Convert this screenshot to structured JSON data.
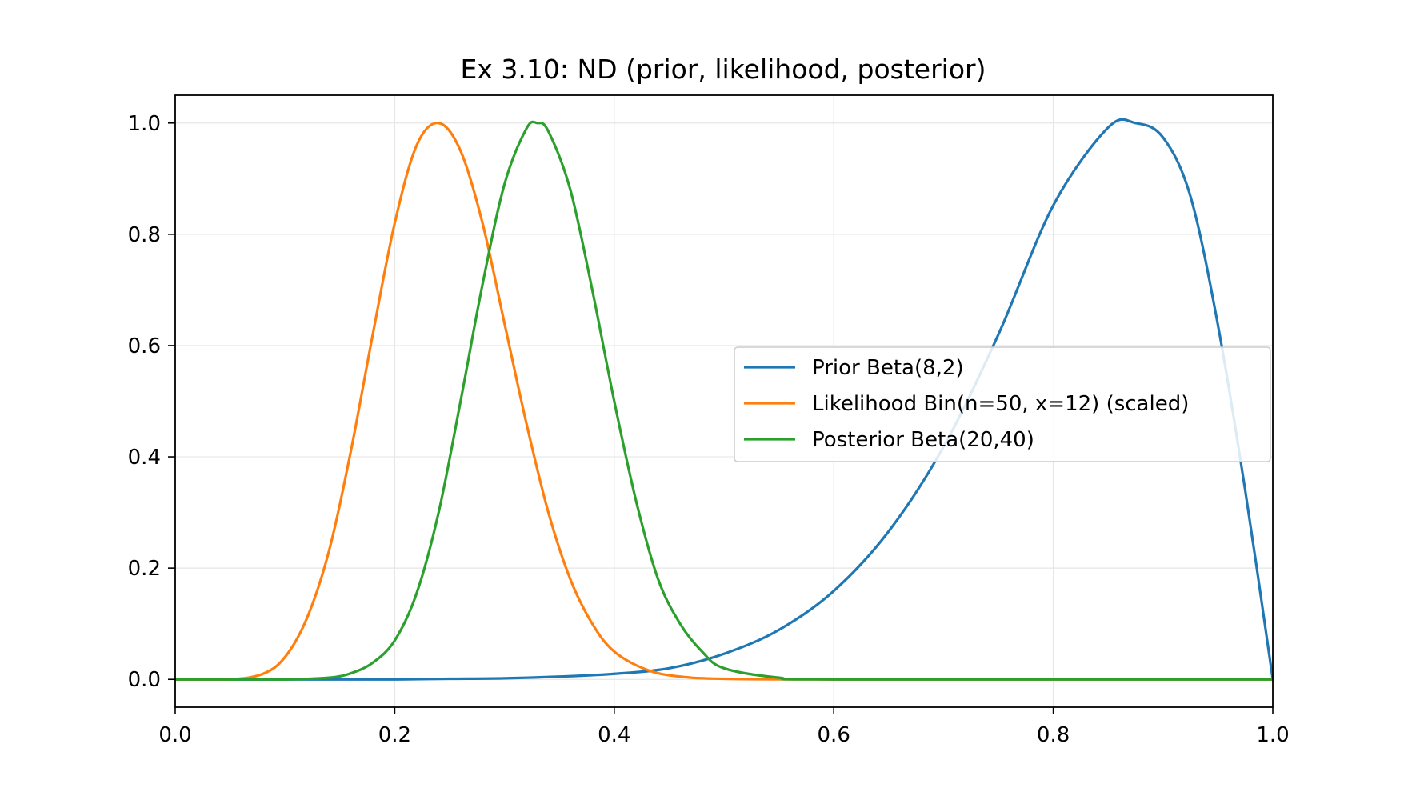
{
  "chart_data": {
    "type": "line",
    "title": "Ex 3.10: ND (prior, likelihood, posterior)",
    "xlabel": "",
    "ylabel": "",
    "xlim": [
      0.0,
      1.0
    ],
    "ylim": [
      -0.05,
      1.05
    ],
    "xticks": [
      "0.0",
      "0.2",
      "0.4",
      "0.6",
      "0.8",
      "1.0"
    ],
    "yticks": [
      "0.0",
      "0.2",
      "0.4",
      "0.6",
      "0.8",
      "1.0"
    ],
    "grid": true,
    "legend_position": "center-right",
    "series": [
      {
        "name": "Prior Beta(8,2)",
        "color": "#1f77b4",
        "x": [
          0.0,
          0.05,
          0.1,
          0.15,
          0.2,
          0.25,
          0.3,
          0.35,
          0.4,
          0.45,
          0.5,
          0.55,
          0.6,
          0.65,
          0.7,
          0.75,
          0.8,
          0.85,
          0.875,
          0.9,
          0.925,
          0.95,
          0.975,
          1.0
        ],
        "y": [
          0.0,
          0.0,
          0.0,
          0.0,
          0.0,
          0.001,
          0.002,
          0.005,
          0.01,
          0.02,
          0.046,
          0.089,
          0.159,
          0.266,
          0.418,
          0.62,
          0.852,
          0.992,
          1.0,
          0.974,
          0.868,
          0.637,
          0.338,
          0.0
        ]
      },
      {
        "name": "Likelihood Bin(n=50, x=12) (scaled)",
        "color": "#ff7f0e",
        "x": [
          0.0,
          0.05,
          0.08,
          0.1,
          0.12,
          0.14,
          0.16,
          0.18,
          0.2,
          0.22,
          0.24,
          0.26,
          0.28,
          0.3,
          0.32,
          0.34,
          0.36,
          0.38,
          0.4,
          0.43,
          0.46,
          0.5,
          0.6,
          1.0
        ],
        "y": [
          0.0,
          0.0,
          0.01,
          0.04,
          0.11,
          0.23,
          0.41,
          0.62,
          0.82,
          0.96,
          1.0,
          0.95,
          0.82,
          0.64,
          0.46,
          0.3,
          0.18,
          0.1,
          0.05,
          0.017,
          0.005,
          0.001,
          0.0,
          0.0
        ]
      },
      {
        "name": "Posterior Beta(20,40)",
        "color": "#2ca02c",
        "x": [
          0.0,
          0.1,
          0.14,
          0.16,
          0.18,
          0.2,
          0.22,
          0.24,
          0.26,
          0.28,
          0.3,
          0.32,
          0.33,
          0.34,
          0.36,
          0.38,
          0.4,
          0.42,
          0.44,
          0.46,
          0.48,
          0.5,
          0.55,
          0.6,
          1.0
        ],
        "y": [
          0.0,
          0.0,
          0.003,
          0.011,
          0.03,
          0.07,
          0.155,
          0.3,
          0.5,
          0.71,
          0.89,
          0.99,
          1.0,
          0.985,
          0.88,
          0.7,
          0.5,
          0.32,
          0.18,
          0.1,
          0.05,
          0.02,
          0.003,
          0.0,
          0.0
        ]
      }
    ]
  }
}
